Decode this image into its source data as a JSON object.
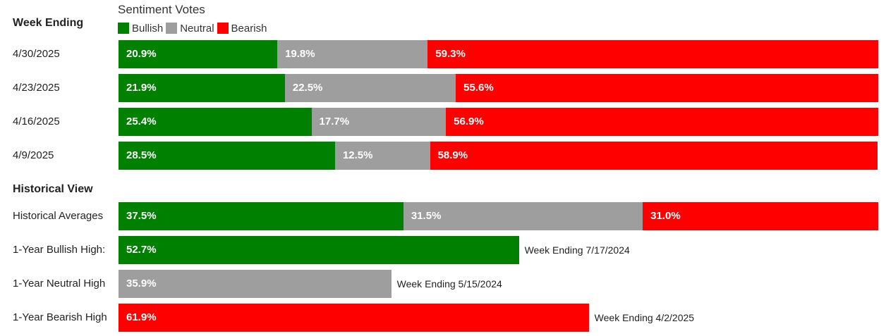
{
  "legend": {
    "title": "Sentiment Votes",
    "items": [
      {
        "label": "Bullish",
        "color": "#008000"
      },
      {
        "label": "Neutral",
        "color": "#9e9e9e"
      },
      {
        "label": "Bearish",
        "color": "#ff0000"
      }
    ]
  },
  "sections": {
    "weekly_title": "Week Ending",
    "historical_title": "Historical View"
  },
  "colors": {
    "bullish": "#008000",
    "neutral": "#9e9e9e",
    "bearish": "#ff0000"
  },
  "chart_data": {
    "type": "bar",
    "orientation": "horizontal",
    "stacked": true,
    "xlim": [
      0,
      100
    ],
    "unit": "%",
    "weekly": [
      {
        "label": "4/30/2025",
        "bullish": 20.9,
        "neutral": 19.8,
        "bearish": 59.3,
        "bullish_text": "20.9%",
        "neutral_text": "19.8%",
        "bearish_text": "59.3%"
      },
      {
        "label": "4/23/2025",
        "bullish": 21.9,
        "neutral": 22.5,
        "bearish": 55.6,
        "bullish_text": "21.9%",
        "neutral_text": "22.5%",
        "bearish_text": "55.6%"
      },
      {
        "label": "4/16/2025",
        "bullish": 25.4,
        "neutral": 17.7,
        "bearish": 56.9,
        "bullish_text": "25.4%",
        "neutral_text": "17.7%",
        "bearish_text": "56.9%"
      },
      {
        "label": "4/9/2025",
        "bullish": 28.5,
        "neutral": 12.5,
        "bearish": 58.9,
        "bullish_text": "28.5%",
        "neutral_text": "12.5%",
        "bearish_text": "58.9%"
      }
    ],
    "historical_averages": {
      "label": "Historical Averages",
      "bullish": 37.5,
      "neutral": 31.5,
      "bearish": 31.0,
      "bullish_text": "37.5%",
      "neutral_text": "31.5%",
      "bearish_text": "31.0%"
    },
    "highs": [
      {
        "label": "1-Year Bullish High:",
        "series": "bullish",
        "value": 52.7,
        "value_text": "52.7%",
        "note": "Week Ending 7/17/2024"
      },
      {
        "label": "1-Year Neutral High",
        "series": "neutral",
        "value": 35.9,
        "value_text": "35.9%",
        "note": "Week Ending 5/15/2024"
      },
      {
        "label": "1-Year Bearish High",
        "series": "bearish",
        "value": 61.9,
        "value_text": "61.9%",
        "note": "Week Ending 4/2/2025"
      }
    ]
  }
}
